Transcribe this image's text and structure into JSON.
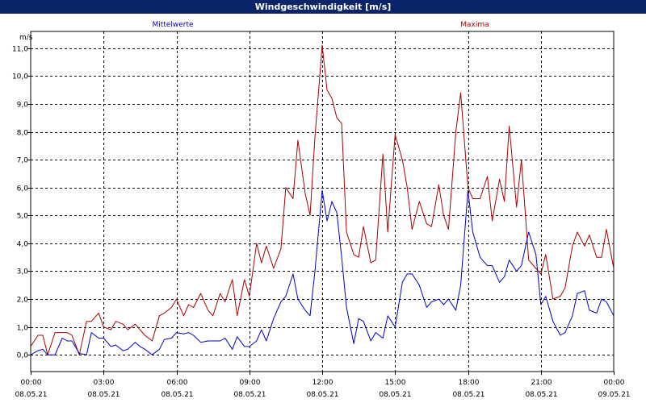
{
  "window": {
    "title": "Windgeschwindigkeit [m/s]"
  },
  "colors": {
    "mittel": "#0000cc",
    "maxima": "#aa0000",
    "titlebar": "#0a246a",
    "grid": "#000000"
  },
  "chart_data": {
    "type": "line",
    "title": "Windgeschwindigkeit [m/s]",
    "ylabel": "m/s",
    "xlabel": "",
    "ylim": [
      -0.6,
      11.6
    ],
    "xlim": [
      0,
      24
    ],
    "grid": true,
    "yticks": [
      0,
      1,
      2,
      3,
      4,
      5,
      6,
      7,
      8,
      9,
      10,
      11
    ],
    "ytick_labels": [
      "0,0",
      "1,0",
      "2,0",
      "3,0",
      "4,0",
      "5,0",
      "6,0",
      "7,0",
      "8,0",
      "9,0",
      "10,0",
      "11,0"
    ],
    "xticks": [
      {
        "x": 0,
        "time": "00:00",
        "date": "08.05.21"
      },
      {
        "x": 3,
        "time": "03:00",
        "date": "08.05.21"
      },
      {
        "x": 6,
        "time": "06:00",
        "date": "08.05.21"
      },
      {
        "x": 9,
        "time": "09:00",
        "date": "08.05.21"
      },
      {
        "x": 12,
        "time": "12:00",
        "date": "08.05.21"
      },
      {
        "x": 15,
        "time": "15:00",
        "date": "08.05.21"
      },
      {
        "x": 18,
        "time": "18:00",
        "date": "08.05.21"
      },
      {
        "x": 21,
        "time": "21:00",
        "date": "08.05.21"
      },
      {
        "x": 24,
        "time": "00:00",
        "date": "09.05.21"
      }
    ],
    "legend": {
      "placement": "top"
    },
    "series": [
      {
        "name": "Mittelwerte",
        "color": "#0000cc",
        "x": [
          0,
          0.3,
          0.5,
          0.7,
          1.0,
          1.3,
          1.5,
          1.7,
          2.0,
          2.3,
          2.5,
          2.8,
          3.0,
          3.3,
          3.5,
          3.8,
          4.0,
          4.3,
          4.5,
          4.7,
          5.0,
          5.3,
          5.5,
          5.8,
          6.0,
          6.3,
          6.5,
          6.7,
          7.0,
          7.3,
          7.5,
          7.8,
          8.0,
          8.3,
          8.5,
          8.8,
          9.0,
          9.3,
          9.5,
          9.7,
          10.0,
          10.3,
          10.5,
          10.8,
          11.0,
          11.3,
          11.5,
          11.7,
          12.0,
          12.2,
          12.4,
          12.6,
          12.8,
          13.0,
          13.3,
          13.5,
          13.7,
          14.0,
          14.2,
          14.5,
          14.7,
          15.0,
          15.3,
          15.5,
          15.7,
          16.0,
          16.3,
          16.5,
          16.8,
          17.0,
          17.2,
          17.5,
          17.7,
          18.0,
          18.2,
          18.5,
          18.8,
          19.0,
          19.3,
          19.5,
          19.7,
          20.0,
          20.2,
          20.5,
          20.8,
          21.0,
          21.2,
          21.5,
          21.8,
          22.0,
          22.3,
          22.5,
          22.8,
          23.0,
          23.3,
          23.5,
          23.7,
          24.0
        ],
        "values": [
          0.0,
          0.15,
          0.2,
          0.0,
          0.0,
          0.6,
          0.5,
          0.5,
          0.05,
          0.0,
          0.8,
          0.6,
          0.6,
          0.3,
          0.35,
          0.15,
          0.2,
          0.45,
          0.3,
          0.2,
          0.0,
          0.2,
          0.55,
          0.6,
          0.8,
          0.75,
          0.8,
          0.7,
          0.45,
          0.5,
          0.5,
          0.5,
          0.6,
          0.2,
          0.65,
          0.3,
          0.3,
          0.5,
          0.9,
          0.5,
          1.3,
          1.9,
          2.1,
          2.9,
          2.0,
          1.6,
          1.4,
          3.0,
          5.9,
          4.8,
          5.5,
          5.1,
          3.5,
          1.7,
          0.4,
          1.3,
          1.2,
          0.5,
          0.8,
          0.6,
          1.4,
          1.0,
          2.6,
          2.9,
          2.9,
          2.5,
          1.7,
          1.9,
          2.0,
          1.8,
          2.0,
          1.6,
          2.5,
          5.9,
          4.4,
          3.5,
          3.2,
          3.2,
          2.6,
          2.8,
          3.4,
          3.0,
          3.2,
          4.4,
          3.6,
          1.8,
          2.1,
          1.2,
          0.7,
          0.8,
          1.4,
          2.2,
          2.3,
          1.6,
          1.5,
          2.0,
          1.9,
          1.4
        ]
      },
      {
        "name": "Maxima",
        "color": "#aa0000",
        "x": [
          0,
          0.3,
          0.5,
          0.7,
          1.0,
          1.3,
          1.5,
          1.7,
          2.0,
          2.3,
          2.5,
          2.8,
          3.0,
          3.3,
          3.5,
          3.8,
          4.0,
          4.3,
          4.5,
          4.7,
          5.0,
          5.3,
          5.5,
          5.8,
          6.0,
          6.3,
          6.5,
          6.7,
          7.0,
          7.3,
          7.5,
          7.8,
          8.0,
          8.3,
          8.5,
          8.8,
          9.0,
          9.3,
          9.5,
          9.7,
          10.0,
          10.3,
          10.5,
          10.8,
          11.0,
          11.3,
          11.5,
          11.7,
          12.0,
          12.2,
          12.4,
          12.6,
          12.8,
          13.0,
          13.3,
          13.5,
          13.7,
          14.0,
          14.2,
          14.5,
          14.7,
          15.0,
          15.3,
          15.5,
          15.7,
          16.0,
          16.3,
          16.5,
          16.8,
          17.0,
          17.2,
          17.5,
          17.7,
          18.0,
          18.2,
          18.5,
          18.8,
          19.0,
          19.3,
          19.5,
          19.7,
          20.0,
          20.2,
          20.5,
          20.8,
          21.0,
          21.2,
          21.5,
          21.8,
          22.0,
          22.3,
          22.5,
          22.8,
          23.0,
          23.3,
          23.5,
          23.7,
          24.0
        ],
        "values": [
          0.3,
          0.7,
          0.7,
          0.0,
          0.8,
          0.8,
          0.8,
          0.7,
          0.0,
          1.2,
          1.2,
          1.5,
          1.0,
          0.9,
          1.2,
          1.1,
          0.9,
          1.1,
          0.9,
          0.7,
          0.5,
          1.4,
          1.5,
          1.7,
          2.0,
          1.4,
          1.8,
          1.7,
          2.2,
          1.6,
          1.4,
          2.2,
          1.9,
          2.7,
          1.4,
          2.7,
          2.1,
          4.0,
          3.3,
          3.9,
          3.1,
          3.8,
          6.0,
          5.6,
          7.7,
          5.8,
          5.0,
          7.8,
          11.1,
          9.5,
          9.2,
          8.5,
          8.3,
          4.4,
          3.6,
          3.5,
          4.6,
          3.3,
          3.4,
          7.2,
          4.4,
          7.9,
          7.0,
          6.0,
          4.5,
          5.5,
          4.7,
          4.6,
          6.1,
          5.0,
          4.5,
          8.0,
          9.4,
          6.0,
          5.6,
          5.6,
          6.4,
          4.8,
          6.3,
          5.5,
          8.2,
          5.3,
          7.0,
          3.4,
          3.1,
          2.9,
          3.6,
          2.0,
          2.1,
          2.4,
          3.9,
          4.4,
          3.9,
          4.3,
          3.5,
          3.5,
          4.5,
          3.1
        ]
      }
    ]
  }
}
